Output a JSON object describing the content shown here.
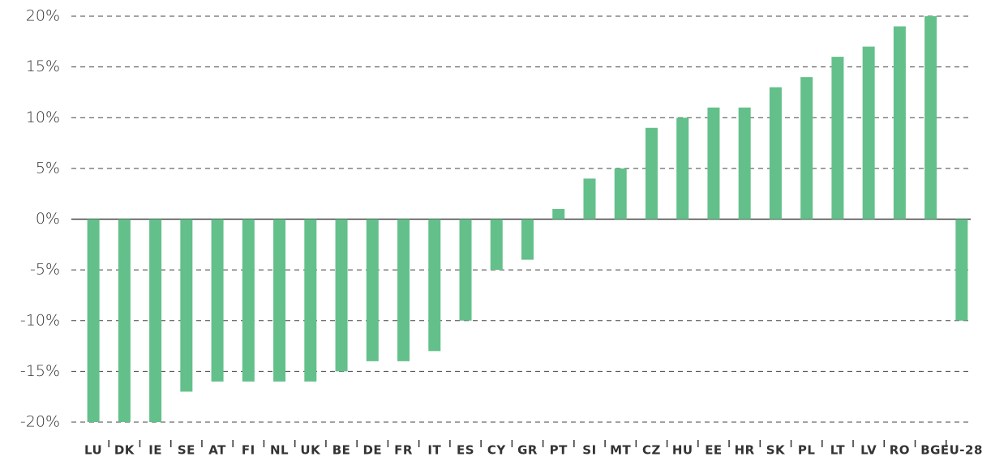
{
  "chart_data": {
    "type": "bar",
    "categories": [
      "LU",
      "DK",
      "IE",
      "SE",
      "AT",
      "FI",
      "NL",
      "UK",
      "BE",
      "DE",
      "FR",
      "IT",
      "ES",
      "CY",
      "GR",
      "PT",
      "SI",
      "MT",
      "CZ",
      "HU",
      "EE",
      "HR",
      "SK",
      "PL",
      "LT",
      "LV",
      "RO",
      "BG",
      "EU-28"
    ],
    "values": [
      -20,
      -20,
      -20,
      -17,
      -16,
      -16,
      -16,
      -16,
      -15,
      -14,
      -14,
      -13,
      -10,
      -5,
      -4,
      1,
      4,
      5,
      9,
      10,
      11,
      11,
      13,
      14,
      16,
      17,
      19,
      20,
      -10
    ],
    "color": "#63c08a",
    "ylim": [
      -20,
      20
    ],
    "yticks": [
      {
        "value": 20,
        "label": "20%"
      },
      {
        "value": 15,
        "label": "15%"
      },
      {
        "value": 10,
        "label": "10%"
      },
      {
        "value": 5,
        "label": "5%"
      },
      {
        "value": 0,
        "label": "0%"
      },
      {
        "value": -5,
        "label": "-5%"
      },
      {
        "value": -10,
        "label": "-10%"
      },
      {
        "value": -15,
        "label": "-15%"
      },
      {
        "value": -20,
        "label": "-20%"
      }
    ],
    "grid": true
  }
}
